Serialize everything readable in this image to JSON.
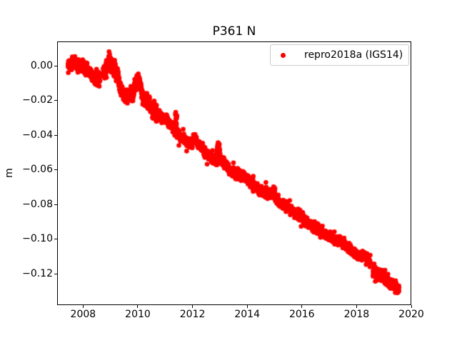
{
  "chart_data": {
    "type": "scatter",
    "title": "P361 N",
    "xlabel": "",
    "ylabel": "m",
    "grid": false,
    "background": "#ffffff",
    "spine_color": "#000000",
    "xlim": [
      2007.05,
      2020.0
    ],
    "ylim": [
      -0.138,
      0.0141
    ],
    "xticks": {
      "values": [
        2008,
        2010,
        2012,
        2014,
        2016,
        2018,
        2020
      ],
      "labels": [
        "2008",
        "2010",
        "2012",
        "2014",
        "2016",
        "2018",
        "2020"
      ]
    },
    "yticks": {
      "values": [
        0.0,
        -0.02,
        -0.04,
        -0.06,
        -0.08,
        -0.1,
        -0.12
      ],
      "labels": [
        "0.00",
        "−0.02",
        "−0.04",
        "−0.06",
        "−0.08",
        "−0.10",
        "−0.12"
      ]
    },
    "legend": {
      "location": "upper right",
      "border_color": "#cccccc"
    },
    "series": [
      {
        "name": "repro2018a (IGS14)",
        "color": "#ff0000",
        "marker": "dot",
        "marker_radius_px": 3.3,
        "x_start": 2007.45,
        "x_end": 2019.55,
        "sample_interval_years": 0.0027,
        "trend_anchors": [
          [
            2007.45,
            0.0005
          ],
          [
            2007.6,
            0.0015
          ],
          [
            2007.75,
            0.002
          ],
          [
            2007.9,
            0.0
          ],
          [
            2008.05,
            -0.001
          ],
          [
            2008.14,
            -0.002
          ],
          [
            2008.2,
            -0.0035
          ],
          [
            2008.3,
            -0.006
          ],
          [
            2008.45,
            -0.009
          ],
          [
            2008.6,
            -0.0075
          ],
          [
            2008.74,
            -0.0025
          ],
          [
            2008.9,
            0.0
          ],
          [
            2009.0,
            0.003
          ],
          [
            2009.1,
            0.001
          ],
          [
            2009.2,
            -0.002
          ],
          [
            2009.35,
            -0.012
          ],
          [
            2009.5,
            -0.017
          ],
          [
            2009.65,
            -0.018
          ],
          [
            2009.8,
            -0.017
          ],
          [
            2009.95,
            -0.01
          ],
          [
            2010.05,
            -0.009
          ],
          [
            2010.15,
            -0.017
          ],
          [
            2010.3,
            -0.02
          ],
          [
            2010.45,
            -0.023
          ],
          [
            2010.6,
            -0.024
          ],
          [
            2010.75,
            -0.027
          ],
          [
            2010.9,
            -0.029
          ],
          [
            2011.05,
            -0.0315
          ],
          [
            2011.2,
            -0.034
          ],
          [
            2011.35,
            -0.037
          ],
          [
            2011.5,
            -0.0395
          ],
          [
            2011.65,
            -0.042
          ],
          [
            2011.8,
            -0.044
          ],
          [
            2012.0,
            -0.044
          ],
          [
            2012.1,
            -0.0425
          ],
          [
            2012.25,
            -0.046
          ],
          [
            2012.4,
            -0.0485
          ],
          [
            2012.55,
            -0.051
          ],
          [
            2012.7,
            -0.0535
          ],
          [
            2012.85,
            -0.055
          ],
          [
            2013.0,
            -0.0545
          ],
          [
            2013.15,
            -0.056
          ],
          [
            2013.3,
            -0.059
          ],
          [
            2013.45,
            -0.061
          ],
          [
            2013.6,
            -0.0625
          ],
          [
            2013.8,
            -0.064
          ],
          [
            2014.0,
            -0.0645
          ],
          [
            2014.2,
            -0.068
          ],
          [
            2014.4,
            -0.0715
          ],
          [
            2014.6,
            -0.073
          ],
          [
            2014.8,
            -0.0735
          ],
          [
            2014.95,
            -0.074
          ],
          [
            2015.1,
            -0.078
          ],
          [
            2015.3,
            -0.08
          ],
          [
            2015.5,
            -0.082
          ],
          [
            2015.7,
            -0.0845
          ],
          [
            2015.9,
            -0.0875
          ],
          [
            2016.1,
            -0.0895
          ],
          [
            2016.3,
            -0.0915
          ],
          [
            2016.5,
            -0.0935
          ],
          [
            2016.7,
            -0.0955
          ],
          [
            2016.9,
            -0.098
          ],
          [
            2017.1,
            -0.0995
          ],
          [
            2017.3,
            -0.101
          ],
          [
            2017.5,
            -0.102
          ],
          [
            2017.7,
            -0.104
          ],
          [
            2017.9,
            -0.107
          ],
          [
            2018.1,
            -0.109
          ],
          [
            2018.3,
            -0.11
          ],
          [
            2018.45,
            -0.112
          ],
          [
            2018.62,
            -0.119
          ],
          [
            2018.85,
            -0.1205
          ],
          [
            2019.05,
            -0.1225
          ],
          [
            2019.2,
            -0.125
          ],
          [
            2019.35,
            -0.127
          ],
          [
            2019.55,
            -0.129
          ]
        ],
        "gaps": [
          [
            2008.15,
            2008.19
          ],
          [
            2008.62,
            2008.73
          ],
          [
            2018.5,
            2018.6
          ]
        ],
        "outlier_points": [
          [
            2011.38,
            -0.0275
          ],
          [
            2011.395,
            -0.0305
          ],
          [
            2011.41,
            -0.034
          ],
          [
            2011.425,
            -0.0295
          ],
          [
            2012.88,
            -0.0505
          ],
          [
            2012.9,
            -0.048
          ],
          [
            2012.915,
            -0.0465
          ],
          [
            2012.93,
            -0.045
          ],
          [
            2012.945,
            -0.0455
          ],
          [
            2012.96,
            -0.0475
          ],
          [
            2012.975,
            -0.046
          ],
          [
            2012.99,
            -0.049
          ],
          [
            2013.005,
            -0.0515
          ],
          [
            2014.96,
            -0.0705
          ],
          [
            2014.985,
            -0.071
          ],
          [
            2015.01,
            -0.0715
          ],
          [
            2010.0,
            -0.0065
          ],
          [
            2010.02,
            -0.007
          ],
          [
            2010.04,
            -0.0075
          ]
        ],
        "noise_std_default": 0.0013,
        "noise_std_regions": [
          [
            2007.45,
            2008.7,
            0.0018
          ],
          [
            2008.7,
            2009.3,
            0.0028
          ],
          [
            2009.3,
            2010.7,
            0.002
          ],
          [
            2018.5,
            2019.6,
            0.0016
          ]
        ],
        "outlier_rate": 0.012
      }
    ]
  }
}
